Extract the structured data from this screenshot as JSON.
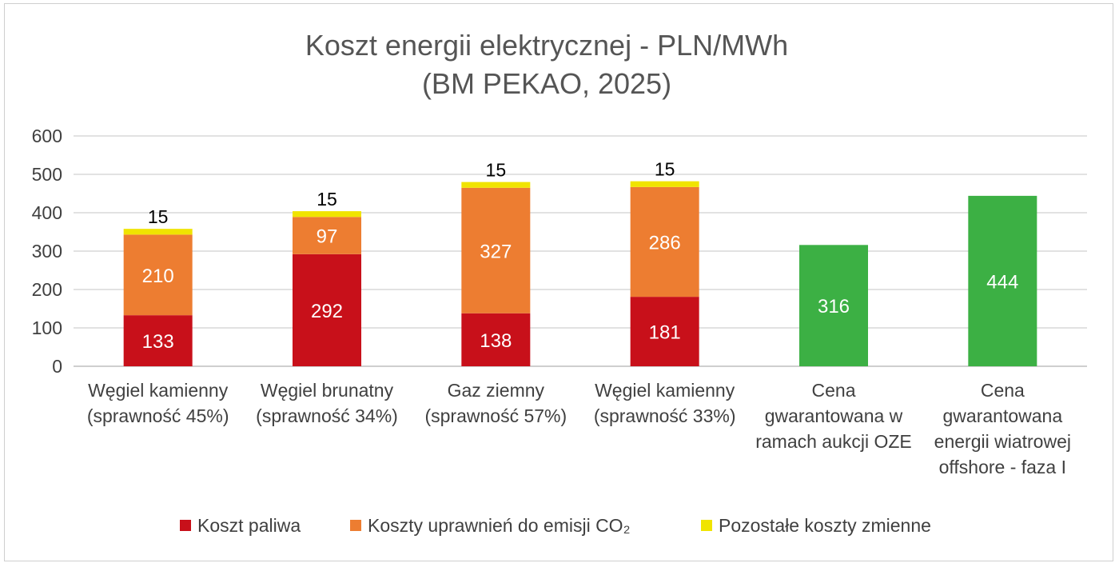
{
  "title_lines": [
    "Koszt energii elektrycznej - PLN/MWh",
    "(BM PEKAO, 2025)"
  ],
  "colors": {
    "paliwo": "#c8101a",
    "co2": "#ed7d31",
    "pozostale": "#f0e400",
    "oze": "#3cb044",
    "grid": "#d9d9d9",
    "axis": "#bfbfbf",
    "text": "#404040"
  },
  "chart_data": {
    "type": "bar",
    "stacked": true,
    "title": "Koszt energii elektrycznej - PLN/MWh (BM PEKAO, 2025)",
    "ylim": [
      0,
      600
    ],
    "yticks": [
      0,
      100,
      200,
      300,
      400,
      500,
      600
    ],
    "grid": true,
    "legend_position": "bottom",
    "categories": [
      [
        "Węgiel kamienny",
        "(sprawność 45%)"
      ],
      [
        "Węgiel brunatny",
        "(sprawność 34%)"
      ],
      [
        "Gaz ziemny",
        "(sprawność 57%)"
      ],
      [
        "Węgiel kamienny",
        "(sprawność 33%)"
      ],
      [
        "Cena",
        "gwarantowana w",
        "ramach aukcji OZE"
      ],
      [
        "Cena",
        "gwarantowana",
        "energii wiatrowej",
        "offshore - faza I"
      ]
    ],
    "series": [
      {
        "name": "Koszt paliwa",
        "color_key": "paliwo",
        "values": [
          133,
          292,
          138,
          181,
          null,
          null
        ]
      },
      {
        "name": "Koszty uprawnień do emisji CO₂",
        "color_key": "co2",
        "values": [
          210,
          97,
          327,
          286,
          null,
          null
        ]
      },
      {
        "name": "Pozostałe koszty zmienne",
        "color_key": "pozostale",
        "values": [
          15,
          15,
          15,
          15,
          null,
          null
        ]
      },
      {
        "name": "",
        "color_key": "oze",
        "values": [
          null,
          null,
          null,
          null,
          316,
          444
        ]
      }
    ]
  },
  "legend": [
    {
      "label": "Koszt paliwa",
      "color_key": "paliwo"
    },
    {
      "label": "Koszty uprawnień do emisji CO₂",
      "color_key": "co2"
    },
    {
      "label": "Pozostałe koszty zmienne",
      "color_key": "pozostale"
    }
  ]
}
